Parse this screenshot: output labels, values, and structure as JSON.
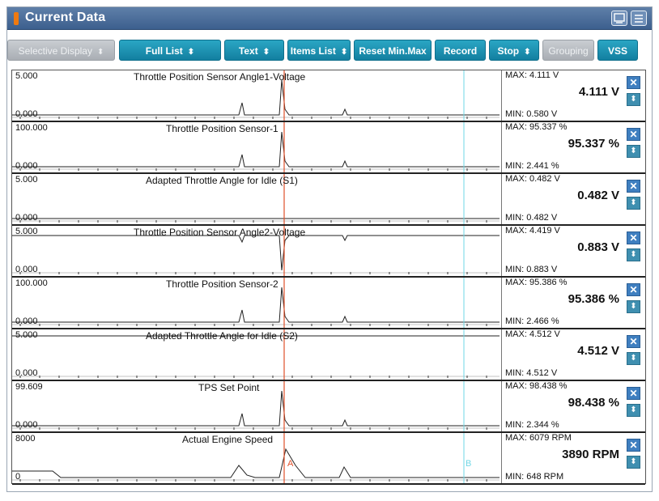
{
  "title": "Current Data",
  "toolbar": {
    "selective_display": "Selective Display",
    "full_list": "Full List",
    "text": "Text",
    "items_list": "Items List",
    "reset_minmax": "Reset Min.Max",
    "record": "Record",
    "stop": "Stop",
    "grouping": "Grouping",
    "vss": "VSS"
  },
  "cursors": {
    "a_label": "A",
    "b_label": "B",
    "a_color": "#e0502a",
    "b_color": "#6fd7e6"
  },
  "colors": {
    "accent": "#1f8fb0",
    "title_bar": "#4a6b97"
  },
  "rows": [
    {
      "name": "Throttle Position Sensor Angle1-Voltage",
      "ymax": "5.000",
      "ymin": "0.000",
      "max": "MAX: 4.111 V",
      "value": "4.111 V",
      "min": "MIN: 0.580 V"
    },
    {
      "name": "Throttle Position Sensor-1",
      "ymax": "100.000",
      "ymin": "0.000",
      "max": "MAX: 95.337 %",
      "value": "95.337 %",
      "min": "MIN: 2.441 %"
    },
    {
      "name": "Adapted Throttle Angle for Idle (S1)",
      "ymax": "5.000",
      "ymin": "0.000",
      "max": "MAX: 0.482 V",
      "value": "0.482 V",
      "min": "MIN: 0.482 V"
    },
    {
      "name": "Throttle Position Sensor Angle2-Voltage",
      "ymax": "5.000",
      "ymin": "0.000",
      "max": "MAX: 4.419 V",
      "value": "0.883 V",
      "min": "MIN: 0.883 V"
    },
    {
      "name": "Throttle Position Sensor-2",
      "ymax": "100.000",
      "ymin": "0.000",
      "max": "MAX: 95.386 %",
      "value": "95.386 %",
      "min": "MIN: 2.466 %"
    },
    {
      "name": "Adapted Throttle Angle for Idle (S2)",
      "ymax": "5.000",
      "ymin": "0.000",
      "max": "MAX: 4.512 V",
      "value": "4.512 V",
      "min": "MIN: 4.512 V"
    },
    {
      "name": "TPS Set Point",
      "ymax": "99.609",
      "ymin": "0.000",
      "max": "MAX: 98.438 %",
      "value": "98.438 %",
      "min": "MIN: 2.344 %"
    },
    {
      "name": "Actual Engine Speed",
      "ymax": "8000",
      "ymin": "0",
      "max": "MAX:   6079 RPM",
      "value": "3890 RPM",
      "min": "MIN:   648 RPM"
    }
  ]
}
